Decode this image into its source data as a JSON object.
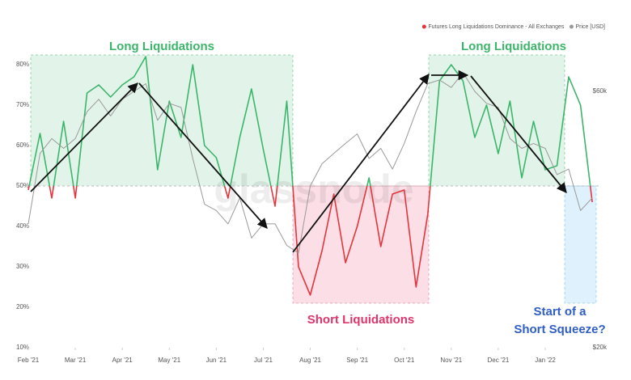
{
  "chart_data": {
    "type": "line",
    "legend": "top-right",
    "watermark": "glassnode",
    "annotations": [
      "Long Liquidations",
      "Long Liquidations",
      "Short Liquidations",
      "Start of a",
      "Short Squeeze?"
    ],
    "categories": [
      "Feb '21",
      null,
      null,
      null,
      "Mar '21",
      null,
      null,
      null,
      "Apr '21",
      null,
      null,
      null,
      "May '21",
      null,
      null,
      null,
      "Jun '21",
      null,
      null,
      null,
      "Jul '21",
      null,
      null,
      null,
      "Aug '21",
      null,
      null,
      null,
      "Sep '21",
      null,
      null,
      null,
      "Oct '21",
      null,
      null,
      null,
      "Nov '21",
      null,
      null,
      null,
      "Dec '21",
      null,
      null,
      null,
      "Jan '22",
      null,
      null,
      null,
      null
    ],
    "threshold": 50,
    "ylim": [
      10,
      90
    ],
    "yticks": [
      {
        "value": 10,
        "label": "10%"
      },
      {
        "value": 20,
        "label": "20%"
      },
      {
        "value": 30,
        "label": "30%"
      },
      {
        "value": 40,
        "label": "40%"
      },
      {
        "value": 50,
        "label": "50%"
      },
      {
        "value": 60,
        "label": "60%"
      },
      {
        "value": 70,
        "label": "70%"
      },
      {
        "value": 80,
        "label": "80%"
      }
    ],
    "y2lim": [
      20000,
      80000
    ],
    "y2log": true,
    "y2ticks": [
      {
        "value": 20000,
        "label": "$20k"
      },
      {
        "value": 60000,
        "label": "$60k"
      }
    ],
    "series": [
      {
        "name": "Futures Long Liquidations Dominance - All Exchanges",
        "color": "#3cb56a",
        "negative_color": "#e2363c",
        "values": [
          49,
          63,
          47,
          66,
          47,
          73,
          75,
          72,
          75,
          77,
          82,
          54,
          71,
          62,
          80,
          60,
          57,
          47,
          62,
          74,
          59,
          45,
          71,
          30,
          23,
          34,
          48,
          31,
          40,
          52,
          35,
          48,
          49,
          25,
          43,
          76,
          80,
          76,
          62,
          70,
          58,
          71,
          52,
          66,
          54,
          55,
          77,
          70,
          46
        ]
      },
      {
        "name": "Price [USD]",
        "color": "#9a9a9a",
        "axis": "y2",
        "values": [
          34000,
          46000,
          49000,
          47000,
          49000,
          55000,
          58000,
          54000,
          58000,
          60000,
          62000,
          53000,
          57000,
          56000,
          45000,
          37000,
          36000,
          34000,
          38000,
          32000,
          34000,
          34000,
          31000,
          30000,
          40000,
          44000,
          46000,
          48000,
          50000,
          45000,
          47000,
          43000,
          48000,
          55000,
          62000,
          63000,
          61000,
          65000,
          60000,
          57000,
          56000,
          49000,
          47000,
          48000,
          47000,
          42000,
          43000,
          36000,
          38000
        ]
      }
    ]
  }
}
